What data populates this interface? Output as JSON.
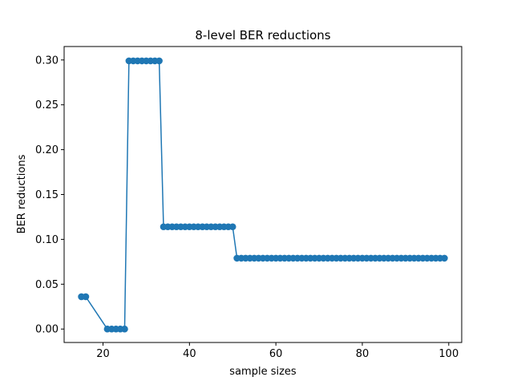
{
  "chart_data": {
    "type": "line",
    "title": "8-level BER reductions",
    "xlabel": "sample sizes",
    "ylabel": "BER reductions",
    "xlim": [
      11,
      103
    ],
    "ylim": [
      -0.015,
      0.315
    ],
    "xticks": [
      20,
      40,
      60,
      80,
      100
    ],
    "xtick_labels": [
      "20",
      "40",
      "60",
      "80",
      "100"
    ],
    "yticks": [
      0.0,
      0.05,
      0.1,
      0.15,
      0.2,
      0.25,
      0.3
    ],
    "ytick_labels": [
      "0.00",
      "0.05",
      "0.10",
      "0.15",
      "0.20",
      "0.25",
      "0.30"
    ],
    "grid": false,
    "marker": "circle",
    "line_color": "#1f77b4",
    "segments": [
      {
        "x_start": 15,
        "x_end": 16,
        "y": 0.036
      },
      {
        "x_start": 21,
        "x_end": 25,
        "y": 0.0
      },
      {
        "x_start": 26,
        "x_end": 33,
        "y": 0.299
      },
      {
        "x_start": 34,
        "x_end": 50,
        "y": 0.114
      },
      {
        "x_start": 51,
        "x_end": 99,
        "y": 0.079
      }
    ]
  }
}
